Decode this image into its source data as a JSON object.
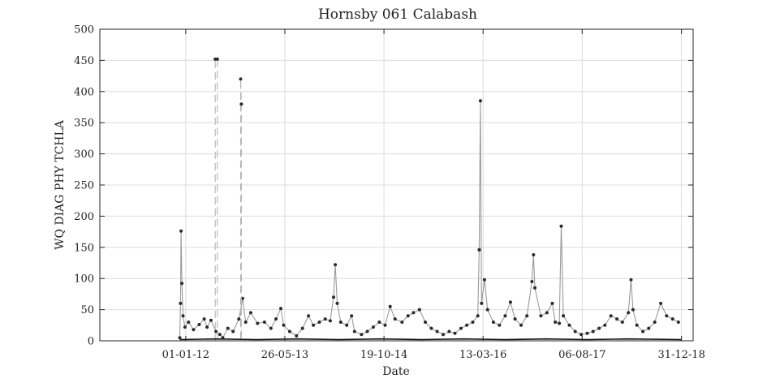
{
  "chart_data": {
    "type": "line",
    "title": "Hornsby 061 Calabash",
    "xlabel": "Date",
    "ylabel": "WQ DIAG PHY TCHLA",
    "ylim": [
      0,
      500
    ],
    "xlim": [
      "2010-10-15",
      "2019-03-01"
    ],
    "grid": true,
    "x_ticks": [
      {
        "date": "2012-01-01",
        "label": "01-01-12"
      },
      {
        "date": "2013-05-26",
        "label": "26-05-13"
      },
      {
        "date": "2014-10-19",
        "label": "19-10-14"
      },
      {
        "date": "2016-03-13",
        "label": "13-03-16"
      },
      {
        "date": "2017-08-06",
        "label": "06-08-17"
      },
      {
        "date": "2018-12-31",
        "label": "31-12-18"
      }
    ],
    "y_ticks": [
      0,
      50,
      100,
      150,
      200,
      250,
      300,
      350,
      400,
      450,
      500
    ],
    "series": [
      {
        "color": "#9a9a9a",
        "style": "solid",
        "points": [
          [
            "2011-12-01",
            5
          ],
          [
            "2011-12-05",
            60
          ],
          [
            "2011-12-08",
            176
          ],
          [
            "2011-12-12",
            92
          ],
          [
            "2011-12-18",
            40
          ],
          [
            "2011-12-28",
            22
          ],
          [
            "2012-01-15",
            30
          ],
          [
            "2012-02-10",
            18
          ],
          [
            "2012-03-10",
            26
          ],
          [
            "2012-04-05",
            35
          ],
          [
            "2012-04-20",
            22
          ],
          [
            "2012-05-10",
            33
          ],
          [
            "2012-06-05",
            15
          ],
          [
            "2012-06-25",
            10
          ],
          [
            "2012-07-10",
            5
          ],
          [
            "2012-08-05",
            20
          ],
          [
            "2012-09-01",
            15
          ],
          [
            "2012-10-01",
            35
          ],
          [
            "2012-10-20",
            68
          ],
          [
            "2012-11-05",
            30
          ],
          [
            "2012-12-01",
            45
          ],
          [
            "2013-01-05",
            28
          ],
          [
            "2013-02-10",
            30
          ],
          [
            "2013-03-15",
            20
          ],
          [
            "2013-04-10",
            35
          ],
          [
            "2013-05-05",
            52
          ],
          [
            "2013-05-20",
            25
          ],
          [
            "2013-06-20",
            15
          ],
          [
            "2013-07-25",
            8
          ],
          [
            "2013-08-25",
            20
          ],
          [
            "2013-09-25",
            40
          ],
          [
            "2013-10-20",
            25
          ],
          [
            "2013-11-20",
            30
          ],
          [
            "2013-12-20",
            35
          ],
          [
            "2014-01-15",
            32
          ],
          [
            "2014-02-01",
            70
          ],
          [
            "2014-02-10",
            122
          ],
          [
            "2014-02-20",
            60
          ],
          [
            "2014-03-10",
            30
          ],
          [
            "2014-04-10",
            25
          ],
          [
            "2014-05-05",
            40
          ],
          [
            "2014-05-20",
            15
          ],
          [
            "2014-06-25",
            10
          ],
          [
            "2014-07-25",
            15
          ],
          [
            "2014-08-25",
            22
          ],
          [
            "2014-09-25",
            30
          ],
          [
            "2014-10-25",
            25
          ],
          [
            "2014-11-20",
            55
          ],
          [
            "2014-12-15",
            35
          ],
          [
            "2015-01-20",
            30
          ],
          [
            "2015-02-20",
            40
          ],
          [
            "2015-03-20",
            45
          ],
          [
            "2015-04-20",
            50
          ],
          [
            "2015-05-20",
            30
          ],
          [
            "2015-06-20",
            20
          ],
          [
            "2015-07-20",
            15
          ],
          [
            "2015-08-20",
            10
          ],
          [
            "2015-09-20",
            15
          ],
          [
            "2015-10-20",
            12
          ],
          [
            "2015-11-20",
            20
          ],
          [
            "2015-12-20",
            25
          ],
          [
            "2016-01-20",
            30
          ],
          [
            "2016-02-15",
            40
          ],
          [
            "2016-02-22",
            146
          ],
          [
            "2016-02-28",
            385
          ],
          [
            "2016-03-05",
            60
          ],
          [
            "2016-03-20",
            98
          ],
          [
            "2016-04-05",
            50
          ],
          [
            "2016-05-05",
            30
          ],
          [
            "2016-06-05",
            25
          ],
          [
            "2016-07-05",
            40
          ],
          [
            "2016-08-01",
            62
          ],
          [
            "2016-08-25",
            35
          ],
          [
            "2016-09-25",
            25
          ],
          [
            "2016-10-25",
            40
          ],
          [
            "2016-11-20",
            95
          ],
          [
            "2016-11-28",
            138
          ],
          [
            "2016-12-05",
            85
          ],
          [
            "2017-01-05",
            40
          ],
          [
            "2017-02-05",
            45
          ],
          [
            "2017-03-05",
            60
          ],
          [
            "2017-03-20",
            30
          ],
          [
            "2017-04-10",
            28
          ],
          [
            "2017-04-20",
            184
          ],
          [
            "2017-05-01",
            40
          ],
          [
            "2017-06-01",
            25
          ],
          [
            "2017-07-01",
            15
          ],
          [
            "2017-08-01",
            10
          ],
          [
            "2017-09-01",
            12
          ],
          [
            "2017-10-01",
            15
          ],
          [
            "2017-11-01",
            20
          ],
          [
            "2017-12-01",
            25
          ],
          [
            "2018-01-01",
            40
          ],
          [
            "2018-02-01",
            35
          ],
          [
            "2018-03-01",
            30
          ],
          [
            "2018-04-01",
            45
          ],
          [
            "2018-04-15",
            98
          ],
          [
            "2018-04-25",
            50
          ],
          [
            "2018-05-15",
            25
          ],
          [
            "2018-06-15",
            15
          ],
          [
            "2018-07-15",
            20
          ],
          [
            "2018-08-15",
            30
          ],
          [
            "2018-09-15",
            60
          ],
          [
            "2018-10-15",
            40
          ],
          [
            "2018-11-15",
            35
          ],
          [
            "2018-12-15",
            30
          ]
        ]
      },
      {
        "color": "#b4b4b4",
        "style": "dashed",
        "points": [
          [
            "2012-06-01",
            0
          ],
          [
            "2012-06-01",
            452
          ],
          [
            "2012-06-12",
            452
          ],
          [
            "2012-06-12",
            0
          ],
          [
            "2012-10-10",
            0
          ],
          [
            "2012-10-10",
            420
          ],
          [
            "2012-10-14",
            380
          ],
          [
            "2012-10-14",
            0
          ]
        ]
      },
      {
        "color": "#111111",
        "style": "solid",
        "points": [
          [
            "2011-12-01",
            2
          ],
          [
            "2012-06-01",
            3
          ],
          [
            "2013-01-01",
            2
          ],
          [
            "2013-08-01",
            3
          ],
          [
            "2014-03-01",
            2
          ],
          [
            "2014-10-01",
            3
          ],
          [
            "2015-05-01",
            2
          ],
          [
            "2015-12-01",
            3
          ],
          [
            "2016-07-01",
            2
          ],
          [
            "2017-02-01",
            3
          ],
          [
            "2017-09-01",
            2
          ],
          [
            "2018-04-01",
            3
          ],
          [
            "2018-12-31",
            2
          ]
        ]
      }
    ]
  }
}
